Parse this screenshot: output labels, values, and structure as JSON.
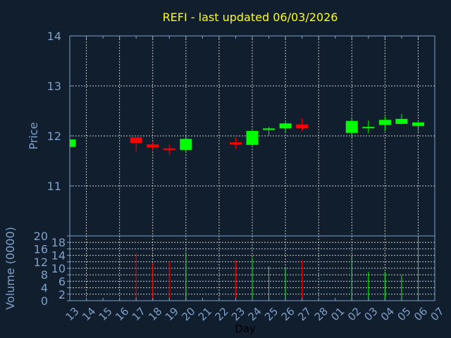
{
  "chart_data": [
    {
      "type": "candlestick",
      "title": "REFI - last updated 06/03/2026",
      "ylabel": "Price",
      "ylim": [
        10,
        14
      ],
      "yticks": [
        "11",
        "12",
        "13",
        "14"
      ],
      "grid": true,
      "x_ticks": [
        "13",
        "14",
        "15",
        "16",
        "17",
        "18",
        "19",
        "20",
        "21",
        "22",
        "23",
        "24",
        "25",
        "26",
        "27",
        "28",
        "01",
        "02",
        "03",
        "04",
        "05",
        "06",
        "07"
      ],
      "candles": [
        {
          "day": "13",
          "open": 11.78,
          "high": 11.93,
          "low": 11.78,
          "close": 11.93
        },
        {
          "day": "17",
          "open": 11.97,
          "high": 11.97,
          "low": 11.69,
          "close": 11.86
        },
        {
          "day": "18",
          "open": 11.83,
          "high": 11.87,
          "low": 11.72,
          "close": 11.77
        },
        {
          "day": "19",
          "open": 11.75,
          "high": 11.83,
          "low": 11.62,
          "close": 11.72
        },
        {
          "day": "20",
          "open": 11.72,
          "high": 11.99,
          "low": 11.67,
          "close": 11.94
        },
        {
          "day": "23",
          "open": 11.87,
          "high": 11.97,
          "low": 11.74,
          "close": 11.83
        },
        {
          "day": "24",
          "open": 11.82,
          "high": 12.1,
          "low": 11.79,
          "close": 12.1
        },
        {
          "day": "25",
          "open": 12.12,
          "high": 12.18,
          "low": 12.01,
          "close": 12.15
        },
        {
          "day": "26",
          "open": 12.15,
          "high": 12.31,
          "low": 12.08,
          "close": 12.25
        },
        {
          "day": "27",
          "open": 12.23,
          "high": 12.35,
          "low": 12.09,
          "close": 12.15
        },
        {
          "day": "02",
          "open": 12.06,
          "high": 12.37,
          "low": 11.97,
          "close": 12.3
        },
        {
          "day": "03",
          "open": 12.16,
          "high": 12.31,
          "low": 12.06,
          "close": 12.18
        },
        {
          "day": "04",
          "open": 12.22,
          "high": 12.38,
          "low": 12.1,
          "close": 12.32
        },
        {
          "day": "05",
          "open": 12.24,
          "high": 12.44,
          "low": 12.23,
          "close": 12.34
        },
        {
          "day": "06",
          "open": 12.2,
          "high": 12.27,
          "low": 12.09,
          "close": 12.27
        }
      ]
    },
    {
      "type": "bar",
      "ylabel": "Volume (0000)",
      "xlabel": "Day",
      "ylim": [
        0,
        20
      ],
      "yticks": [
        "0",
        "2",
        "4",
        "6",
        "8",
        "10",
        "12",
        "14",
        "16",
        "18",
        "20"
      ],
      "grid": true,
      "bars": [
        {
          "day": "17",
          "value": 14.7,
          "direction": "down"
        },
        {
          "day": "18",
          "value": 11.7,
          "direction": "down"
        },
        {
          "day": "19",
          "value": 12.2,
          "direction": "down"
        },
        {
          "day": "20",
          "value": 14.9,
          "direction": "up"
        },
        {
          "day": "23",
          "value": 12.6,
          "direction": "down"
        },
        {
          "day": "24",
          "value": 13.3,
          "direction": "up"
        },
        {
          "day": "25",
          "value": 10.6,
          "direction": "up"
        },
        {
          "day": "26",
          "value": 10.0,
          "direction": "up"
        },
        {
          "day": "27",
          "value": 12.4,
          "direction": "down"
        },
        {
          "day": "02",
          "value": 13.5,
          "direction": "up"
        },
        {
          "day": "03",
          "value": 8.9,
          "direction": "up"
        },
        {
          "day": "04",
          "value": 8.9,
          "direction": "up"
        },
        {
          "day": "05",
          "value": 7.9,
          "direction": "up"
        },
        {
          "day": "06",
          "value": 19.5,
          "direction": "up"
        }
      ]
    }
  ],
  "colors": {
    "up": "#00ff00",
    "down": "#ff0000",
    "axis": "#7fa0c8",
    "title": "#ffff00",
    "grid": "#c8c8c8",
    "background": "#111e2e"
  }
}
